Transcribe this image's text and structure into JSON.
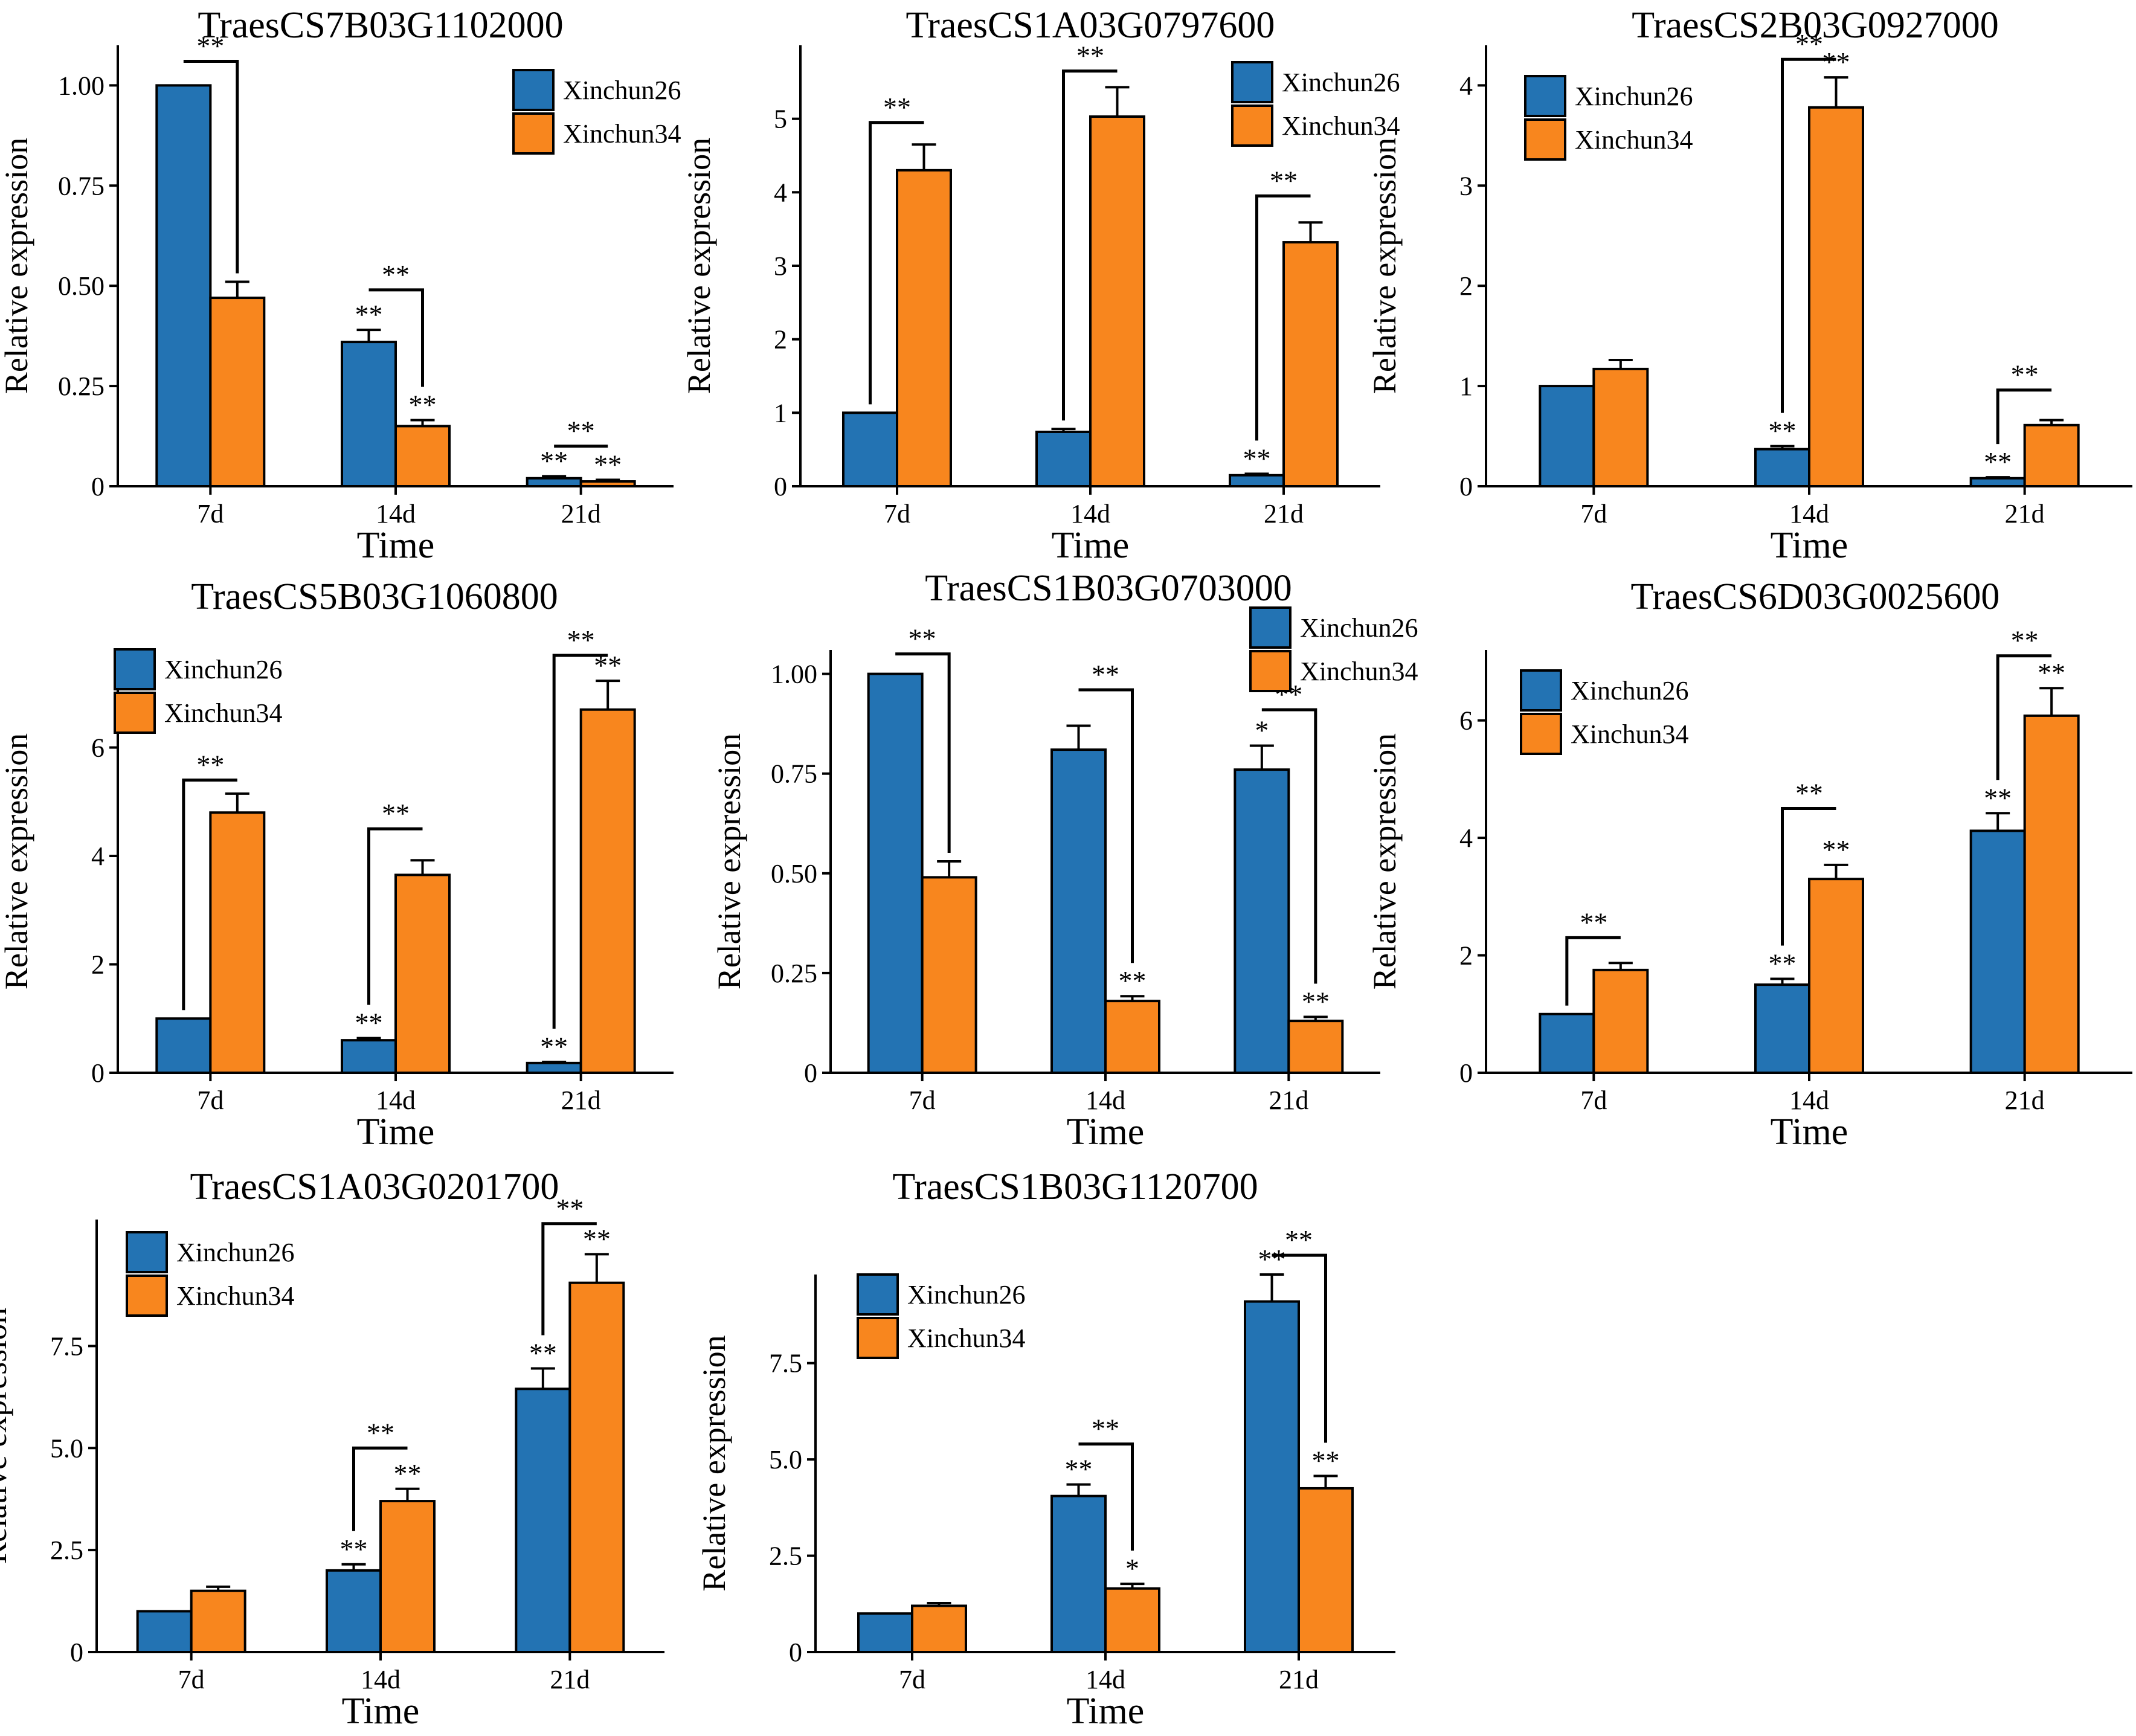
{
  "colors": {
    "Xinchun26": "#2373B3",
    "Xinchun34": "#F8861E"
  },
  "legend": [
    "Xinchun26",
    "Xinchun34"
  ],
  "chart_data": [
    {
      "type": "bar",
      "title": "TraesCS7B03G1102000",
      "xlabel": "Time",
      "ylabel": "Relative expression",
      "categories": [
        "7d",
        "14d",
        "21d"
      ],
      "ylim": [
        0,
        1.1
      ],
      "yticks": [
        0,
        0.25,
        0.5,
        0.75,
        1.0
      ],
      "ytick_labels": [
        "0",
        "0.25",
        "0.50",
        "0.75",
        "1.00"
      ],
      "legend_position": "top-right",
      "series": [
        {
          "name": "Xinchun26",
          "values": [
            1.0,
            0.36,
            0.02
          ],
          "errors": [
            0.0,
            0.03,
            0.005
          ],
          "marks": [
            "",
            "**",
            "**"
          ]
        },
        {
          "name": "Xinchun34",
          "values": [
            0.47,
            0.15,
            0.012
          ],
          "errors": [
            0.04,
            0.015,
            0.004
          ],
          "marks": [
            "",
            "**",
            "**"
          ]
        }
      ],
      "brackets": [
        {
          "category": 0,
          "label": "**",
          "y": 1.06,
          "shape": "down"
        },
        {
          "category": 1,
          "label": "**",
          "y": 0.49,
          "shape": "down"
        },
        {
          "category": 2,
          "label": "**",
          "y": 0.1,
          "shape": "flat"
        }
      ]
    },
    {
      "type": "bar",
      "title": "TraesCS1A03G0797600",
      "xlabel": "Time",
      "ylabel": "Relative expression",
      "categories": [
        "7d",
        "14d",
        "21d"
      ],
      "ylim": [
        0,
        6
      ],
      "yticks": [
        0,
        1,
        2,
        3,
        4,
        5
      ],
      "ytick_labels": [
        "0",
        "1",
        "2",
        "3",
        "4",
        "5"
      ],
      "legend_position": "top-right",
      "series": [
        {
          "name": "Xinchun26",
          "values": [
            1.0,
            0.74,
            0.15
          ],
          "errors": [
            0.0,
            0.04,
            0.02
          ],
          "marks": [
            "",
            "",
            "**"
          ]
        },
        {
          "name": "Xinchun34",
          "values": [
            4.3,
            5.03,
            3.32
          ],
          "errors": [
            0.35,
            0.4,
            0.27
          ],
          "marks": [
            "",
            "",
            ""
          ]
        }
      ],
      "brackets": [
        {
          "category": 0,
          "label": "**",
          "y": 4.95,
          "shape": "up"
        },
        {
          "category": 1,
          "label": "**",
          "y": 5.65,
          "shape": "up"
        },
        {
          "category": 2,
          "label": "**",
          "y": 3.95,
          "shape": "up"
        }
      ]
    },
    {
      "type": "bar",
      "title": "TraesCS2B03G0927000",
      "xlabel": "Time",
      "ylabel": "Relative expression",
      "categories": [
        "7d",
        "14d",
        "21d"
      ],
      "ylim": [
        0,
        4.4
      ],
      "yticks": [
        0,
        1,
        2,
        3,
        4
      ],
      "ytick_labels": [
        "0",
        "1",
        "2",
        "3",
        "4"
      ],
      "legend_position": "top-left",
      "series": [
        {
          "name": "Xinchun26",
          "values": [
            1.0,
            0.37,
            0.08
          ],
          "errors": [
            0.0,
            0.03,
            0.01
          ],
          "marks": [
            "",
            "**",
            "**"
          ]
        },
        {
          "name": "Xinchun34",
          "values": [
            1.17,
            3.78,
            0.61
          ],
          "errors": [
            0.09,
            0.3,
            0.05
          ],
          "marks": [
            "",
            "**",
            ""
          ]
        }
      ],
      "brackets": [
        {
          "category": 1,
          "label": "**",
          "y": 4.26,
          "shape": "up"
        },
        {
          "category": 2,
          "label": "**",
          "y": 0.96,
          "shape": "up"
        }
      ]
    },
    {
      "type": "bar",
      "title": "TraesCS5B03G1060800",
      "xlabel": "Time",
      "ylabel": "Relative expression",
      "categories": [
        "7d",
        "14d",
        "21d"
      ],
      "ylim": [
        0,
        7.8
      ],
      "yticks": [
        0,
        2,
        4,
        6
      ],
      "ytick_labels": [
        "0",
        "2",
        "4",
        "6"
      ],
      "legend_position": "top-left",
      "series": [
        {
          "name": "Xinchun26",
          "values": [
            1.0,
            0.6,
            0.18
          ],
          "errors": [
            0.0,
            0.04,
            0.02
          ],
          "marks": [
            "",
            "**",
            "**"
          ]
        },
        {
          "name": "Xinchun34",
          "values": [
            4.8,
            3.65,
            6.7
          ],
          "errors": [
            0.35,
            0.27,
            0.53
          ],
          "marks": [
            "",
            "",
            "**"
          ]
        }
      ],
      "brackets": [
        {
          "category": 0,
          "label": "**",
          "y": 5.4,
          "shape": "up"
        },
        {
          "category": 1,
          "label": "**",
          "y": 4.5,
          "shape": "up"
        },
        {
          "category": 2,
          "label": "**",
          "y": 7.7,
          "shape": "up"
        }
      ]
    },
    {
      "type": "bar",
      "title": "TraesCS1B03G0703000",
      "xlabel": "Time",
      "ylabel": "Relative expression",
      "categories": [
        "7d",
        "14d",
        "21d"
      ],
      "ylim": [
        0,
        1.06
      ],
      "yticks": [
        0,
        0.25,
        0.5,
        0.75,
        1.0
      ],
      "ytick_labels": [
        "0",
        "0.25",
        "0.50",
        "0.75",
        "1.00"
      ],
      "legend_position": "top-right",
      "series": [
        {
          "name": "Xinchun26",
          "values": [
            1.0,
            0.81,
            0.76
          ],
          "errors": [
            0.0,
            0.06,
            0.06
          ],
          "marks": [
            "",
            "",
            "*"
          ]
        },
        {
          "name": "Xinchun34",
          "values": [
            0.49,
            0.18,
            0.13
          ],
          "errors": [
            0.04,
            0.012,
            0.01
          ],
          "marks": [
            "",
            "**",
            "**"
          ]
        }
      ],
      "brackets": [
        {
          "category": 0,
          "label": "**",
          "y": 1.05,
          "shape": "down"
        },
        {
          "category": 1,
          "label": "**",
          "y": 0.96,
          "shape": "down"
        },
        {
          "category": 2,
          "label": "**",
          "y": 0.91,
          "shape": "down"
        }
      ]
    },
    {
      "type": "bar",
      "title": "TraesCS6D03G0025600",
      "xlabel": "Time",
      "ylabel": "Relative expression",
      "categories": [
        "7d",
        "14d",
        "21d"
      ],
      "ylim": [
        0,
        7.2
      ],
      "yticks": [
        0,
        2,
        4,
        6
      ],
      "ytick_labels": [
        "0",
        "2",
        "4",
        "6"
      ],
      "legend_position": "top-left",
      "series": [
        {
          "name": "Xinchun26",
          "values": [
            1.0,
            1.5,
            4.12
          ],
          "errors": [
            0.0,
            0.1,
            0.3
          ],
          "marks": [
            "",
            "**",
            "**"
          ]
        },
        {
          "name": "Xinchun34",
          "values": [
            1.75,
            3.3,
            6.08
          ],
          "errors": [
            0.12,
            0.24,
            0.47
          ],
          "marks": [
            "",
            "**",
            "**"
          ]
        }
      ],
      "brackets": [
        {
          "category": 0,
          "label": "**",
          "y": 2.3,
          "shape": "up"
        },
        {
          "category": 1,
          "label": "**",
          "y": 4.5,
          "shape": "up"
        },
        {
          "category": 2,
          "label": "**",
          "y": 7.1,
          "shape": "up"
        }
      ]
    },
    {
      "type": "bar",
      "title": "TraesCS1A03G0201700",
      "xlabel": "Time",
      "ylabel": "Relative expression",
      "categories": [
        "7d",
        "14d",
        "21d"
      ],
      "ylim": [
        0,
        10.6
      ],
      "yticks": [
        0,
        2.5,
        5.0,
        7.5
      ],
      "ytick_labels": [
        "0",
        "2.5",
        "5.0",
        "7.5"
      ],
      "legend_position": "top-left",
      "series": [
        {
          "name": "Xinchun26",
          "values": [
            1.0,
            2.0,
            6.45
          ],
          "errors": [
            0.0,
            0.15,
            0.5
          ],
          "marks": [
            "",
            "**",
            "**"
          ]
        },
        {
          "name": "Xinchun34",
          "values": [
            1.5,
            3.7,
            9.05
          ],
          "errors": [
            0.1,
            0.3,
            0.7
          ],
          "marks": [
            "",
            "**",
            "**"
          ]
        }
      ],
      "brackets": [
        {
          "category": 1,
          "label": "**",
          "y": 5.0,
          "shape": "up"
        },
        {
          "category": 2,
          "label": "**",
          "y": 10.5,
          "shape": "up"
        }
      ]
    },
    {
      "type": "bar",
      "title": "TraesCS1B03G1120700",
      "xlabel": "Time",
      "ylabel": "Relative expression",
      "categories": [
        "7d",
        "14d",
        "21d"
      ],
      "ylim": [
        0,
        9.8
      ],
      "yticks": [
        0,
        2.5,
        5.0,
        7.5
      ],
      "ytick_labels": [
        "0",
        "2.5",
        "5.0",
        "7.5"
      ],
      "legend_position": "top-left",
      "series": [
        {
          "name": "Xinchun26",
          "values": [
            1.0,
            4.05,
            9.1
          ],
          "errors": [
            0.0,
            0.3,
            0.7
          ],
          "marks": [
            "",
            "**",
            "**"
          ]
        },
        {
          "name": "Xinchun34",
          "values": [
            1.2,
            1.65,
            4.25
          ],
          "errors": [
            0.07,
            0.12,
            0.32
          ],
          "marks": [
            "",
            "*",
            "**"
          ]
        }
      ],
      "brackets": [
        {
          "category": 1,
          "label": "**",
          "y": 5.4,
          "shape": "down"
        },
        {
          "category": 2,
          "label": "**",
          "y": 10.3,
          "shape": "down"
        }
      ]
    }
  ]
}
